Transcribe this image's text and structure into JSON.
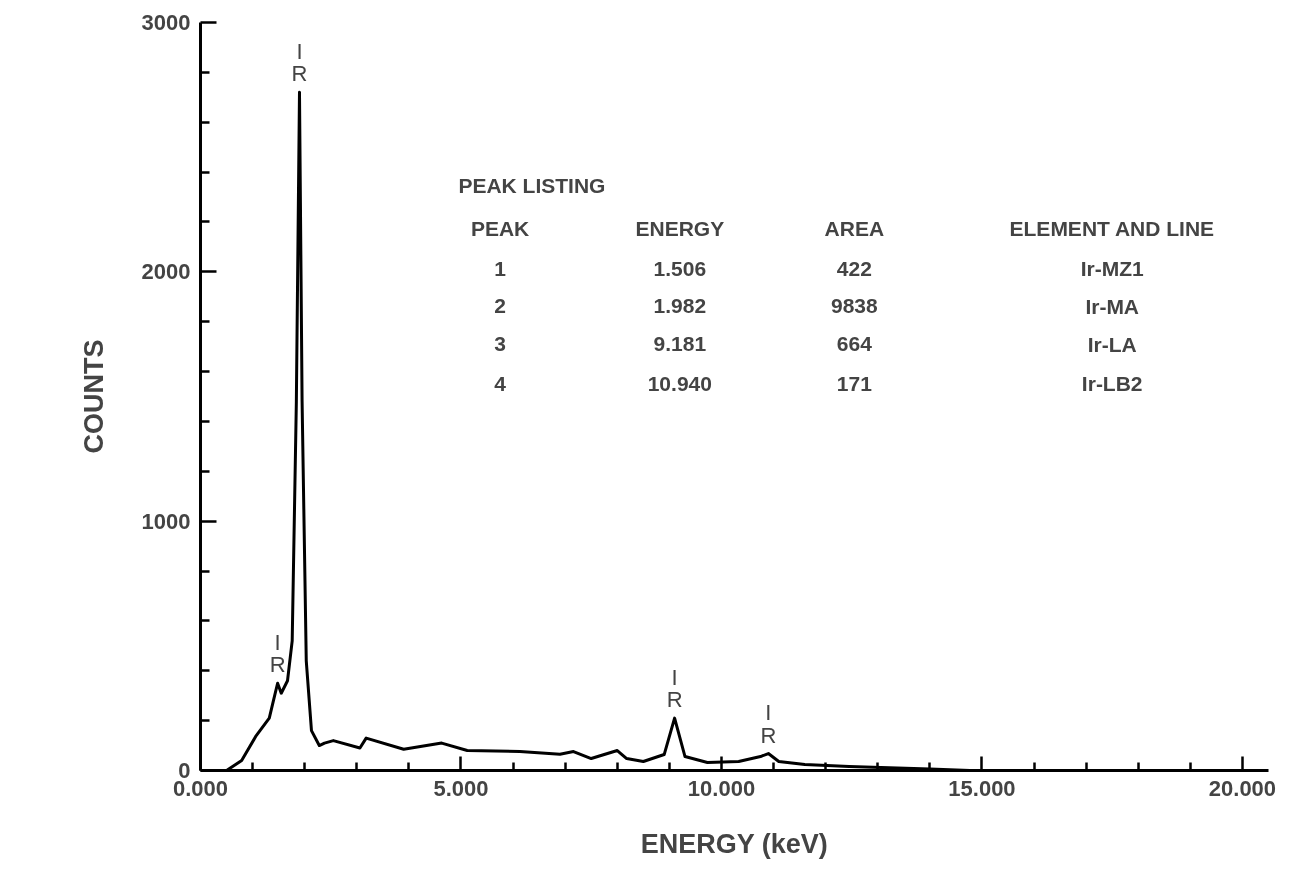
{
  "chart_data": {
    "type": "line",
    "xlabel": "ENERGY (keV)",
    "ylabel": "COUNTS",
    "x": [
      0.5,
      0.79,
      1.07,
      1.32,
      1.4,
      1.48,
      1.55,
      1.67,
      1.76,
      1.84,
      1.9,
      1.95,
      2.03,
      2.13,
      2.28,
      2.38,
      2.55,
      3.06,
      3.18,
      3.9,
      4.63,
      5.12,
      6.13,
      6.9,
      7.16,
      7.5,
      8.0,
      8.18,
      8.5,
      8.9,
      9.1,
      9.3,
      9.73,
      10.33,
      10.75,
      10.9,
      11.1,
      11.6,
      12.45,
      14.0,
      14.77
    ],
    "series": [
      {
        "color": "#000000",
        "values": [
          0,
          40,
          140,
          210,
          280,
          350,
          310,
          360,
          520,
          1480,
          2720,
          1480,
          440,
          160,
          100,
          110,
          120,
          90,
          130,
          85,
          110,
          80,
          76,
          65,
          76,
          48,
          80,
          48,
          36,
          64,
          210,
          56,
          32,
          36,
          56,
          68,
          36,
          24,
          16,
          6,
          0
        ]
      }
    ],
    "xlim": [
      0,
      20.5
    ],
    "ylim": [
      0,
      3000
    ],
    "xticks": [
      {
        "value": 0,
        "label": "0.000"
      },
      {
        "value": 1,
        "label": null
      },
      {
        "value": 2,
        "label": null
      },
      {
        "value": 3,
        "label": null
      },
      {
        "value": 4,
        "label": null
      },
      {
        "value": 5,
        "label": "5.000"
      },
      {
        "value": 6,
        "label": null
      },
      {
        "value": 7,
        "label": null
      },
      {
        "value": 8,
        "label": null
      },
      {
        "value": 9,
        "label": null
      },
      {
        "value": 10,
        "label": "10.000"
      },
      {
        "value": 11,
        "label": null
      },
      {
        "value": 12,
        "label": null
      },
      {
        "value": 13,
        "label": null
      },
      {
        "value": 14,
        "label": null
      },
      {
        "value": 15,
        "label": "15.000"
      },
      {
        "value": 16,
        "label": null
      },
      {
        "value": 17,
        "label": null
      },
      {
        "value": 18,
        "label": null
      },
      {
        "value": 19,
        "label": null
      },
      {
        "value": 20,
        "label": "20.000"
      }
    ],
    "yticks": [
      0,
      {
        "value": 200,
        "label": null
      },
      {
        "value": 400,
        "label": null
      },
      {
        "value": 600,
        "label": null
      },
      {
        "value": 800,
        "label": null
      },
      1000,
      {
        "value": 1200,
        "label": null
      },
      {
        "value": 1400,
        "label": null
      },
      {
        "value": 1600,
        "label": null
      },
      {
        "value": 1800,
        "label": null
      },
      2000,
      {
        "value": 2200,
        "label": null
      },
      {
        "value": 2400,
        "label": null
      },
      {
        "value": 2600,
        "label": null
      },
      {
        "value": 2800,
        "label": null
      },
      3000
    ],
    "annotations": [
      {
        "text": "I\nR",
        "x": 1.48,
        "y": 350
      },
      {
        "text": "I\nR",
        "x": 1.9,
        "y": 2720
      },
      {
        "text": "I\nR",
        "x": 9.1,
        "y": 210
      },
      {
        "text": "I\nR",
        "x": 10.9,
        "y": 68
      },
      "PEAK LISTING",
      "PEAK",
      "ENERGY",
      "AREA",
      "ELEMENT AND LINE",
      "1",
      "1.506",
      "422",
      "Ir-MZ1",
      "2",
      "1.982",
      "9838",
      "Ir-MA",
      "3",
      "9.181",
      "664",
      "Ir-LA",
      "4",
      "10.940",
      "171",
      "Ir-LB2"
    ]
  }
}
